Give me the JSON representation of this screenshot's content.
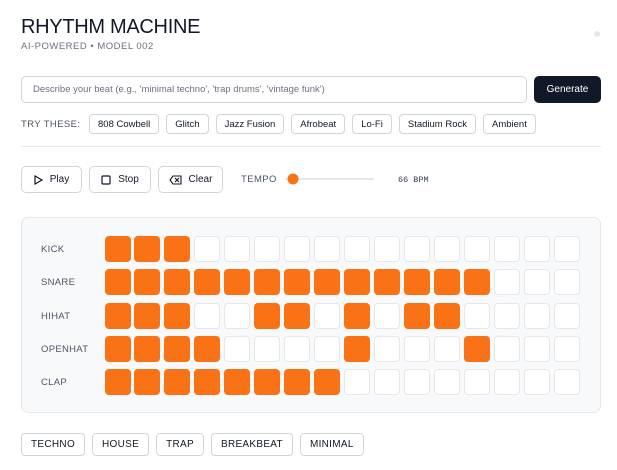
{
  "header": {
    "title": "RHYTHM MACHINE",
    "subtitle": "AI-POWERED • MODEL 002"
  },
  "prompt": {
    "placeholder": "Describe your beat (e.g., 'minimal techno', 'trap drums', 'vintage funk')",
    "button": "Generate"
  },
  "suggestions": {
    "label": "TRY THESE:",
    "items": [
      "808 Cowbell",
      "Glitch",
      "Jazz Fusion",
      "Afrobeat",
      "Lo-Fi",
      "Stadium Rock",
      "Ambient"
    ]
  },
  "controls": {
    "buttons": [
      "Play",
      "Stop",
      "Clear"
    ],
    "tempo_label": "TEMPO",
    "tempo_value": "66 BPM"
  },
  "grid": {
    "rows": [
      {
        "name": "KICK",
        "steps": [
          1,
          1,
          1,
          0,
          0,
          0,
          0,
          0,
          0,
          0,
          0,
          0,
          0,
          0,
          0,
          0
        ]
      },
      {
        "name": "SNARE",
        "steps": [
          1,
          1,
          1,
          1,
          1,
          1,
          1,
          1,
          1,
          1,
          1,
          1,
          1,
          0,
          0,
          0
        ]
      },
      {
        "name": "HIHAT",
        "steps": [
          1,
          1,
          1,
          0,
          0,
          1,
          1,
          0,
          1,
          0,
          1,
          1,
          0,
          0,
          0,
          0
        ]
      },
      {
        "name": "OPENHAT",
        "steps": [
          1,
          1,
          1,
          1,
          0,
          0,
          0,
          0,
          1,
          0,
          0,
          0,
          1,
          0,
          0,
          0
        ]
      },
      {
        "name": "CLAP",
        "steps": [
          1,
          1,
          1,
          1,
          1,
          1,
          1,
          1,
          0,
          0,
          0,
          0,
          0,
          0,
          0,
          0
        ]
      }
    ]
  },
  "presets": [
    "TECHNO",
    "HOUSE",
    "TRAP",
    "BREAKBEAT",
    "MINIMAL"
  ]
}
